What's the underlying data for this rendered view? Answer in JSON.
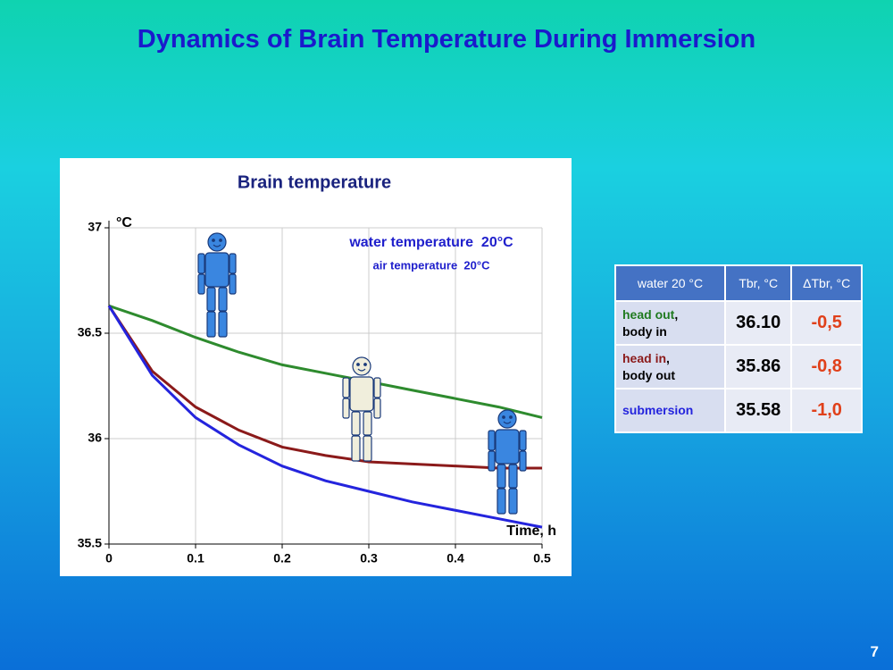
{
  "slide_title": "Dynamics of Brain Temperature During Immersion",
  "chart_data": {
    "type": "line",
    "title": "Brain temperature",
    "y_label": "°C",
    "x_label": "Time, h",
    "annotations": [
      "water temperature  20°C",
      "air temperature  20°C"
    ],
    "x": [
      0,
      0.05,
      0.1,
      0.15,
      0.2,
      0.25,
      0.3,
      0.35,
      0.4,
      0.45,
      0.5
    ],
    "series": [
      {
        "color": "#2e8b2e",
        "values": [
          36.63,
          36.56,
          36.48,
          36.41,
          36.35,
          36.31,
          36.27,
          36.23,
          36.19,
          36.15,
          36.1
        ]
      },
      {
        "color": "#8b1a1a",
        "values": [
          36.63,
          36.32,
          36.15,
          36.04,
          35.96,
          35.92,
          35.89,
          35.88,
          35.87,
          35.86,
          35.86
        ]
      },
      {
        "color": "#2424dd",
        "values": [
          36.63,
          36.3,
          36.1,
          35.97,
          35.87,
          35.8,
          35.75,
          35.7,
          35.66,
          35.62,
          35.58
        ]
      }
    ],
    "xlim": [
      0,
      0.5
    ],
    "xticks": [
      0,
      0.1,
      0.2,
      0.3,
      0.4,
      0.5
    ],
    "ylim": [
      35.5,
      37
    ],
    "yticks": [
      35.5,
      36,
      36.5,
      37
    ],
    "grid": true
  },
  "table": {
    "header": [
      "water 20 °C",
      "Tbr, °C",
      "ΔTbr, °C"
    ],
    "rows": [
      {
        "condition": "head out",
        "suffix": ",",
        "detail": "body in",
        "color": "#1f7a1f",
        "tbr": "36.10",
        "delta": "-0,5"
      },
      {
        "condition": "head in",
        "suffix": ",",
        "detail": "body out",
        "color": "#8b1a1a",
        "tbr": "35.86",
        "delta": "-0,8"
      },
      {
        "condition": "submersion",
        "color": "#2424dd",
        "tbr": "35.58",
        "delta": "-1,0"
      }
    ]
  },
  "page_number": "7"
}
